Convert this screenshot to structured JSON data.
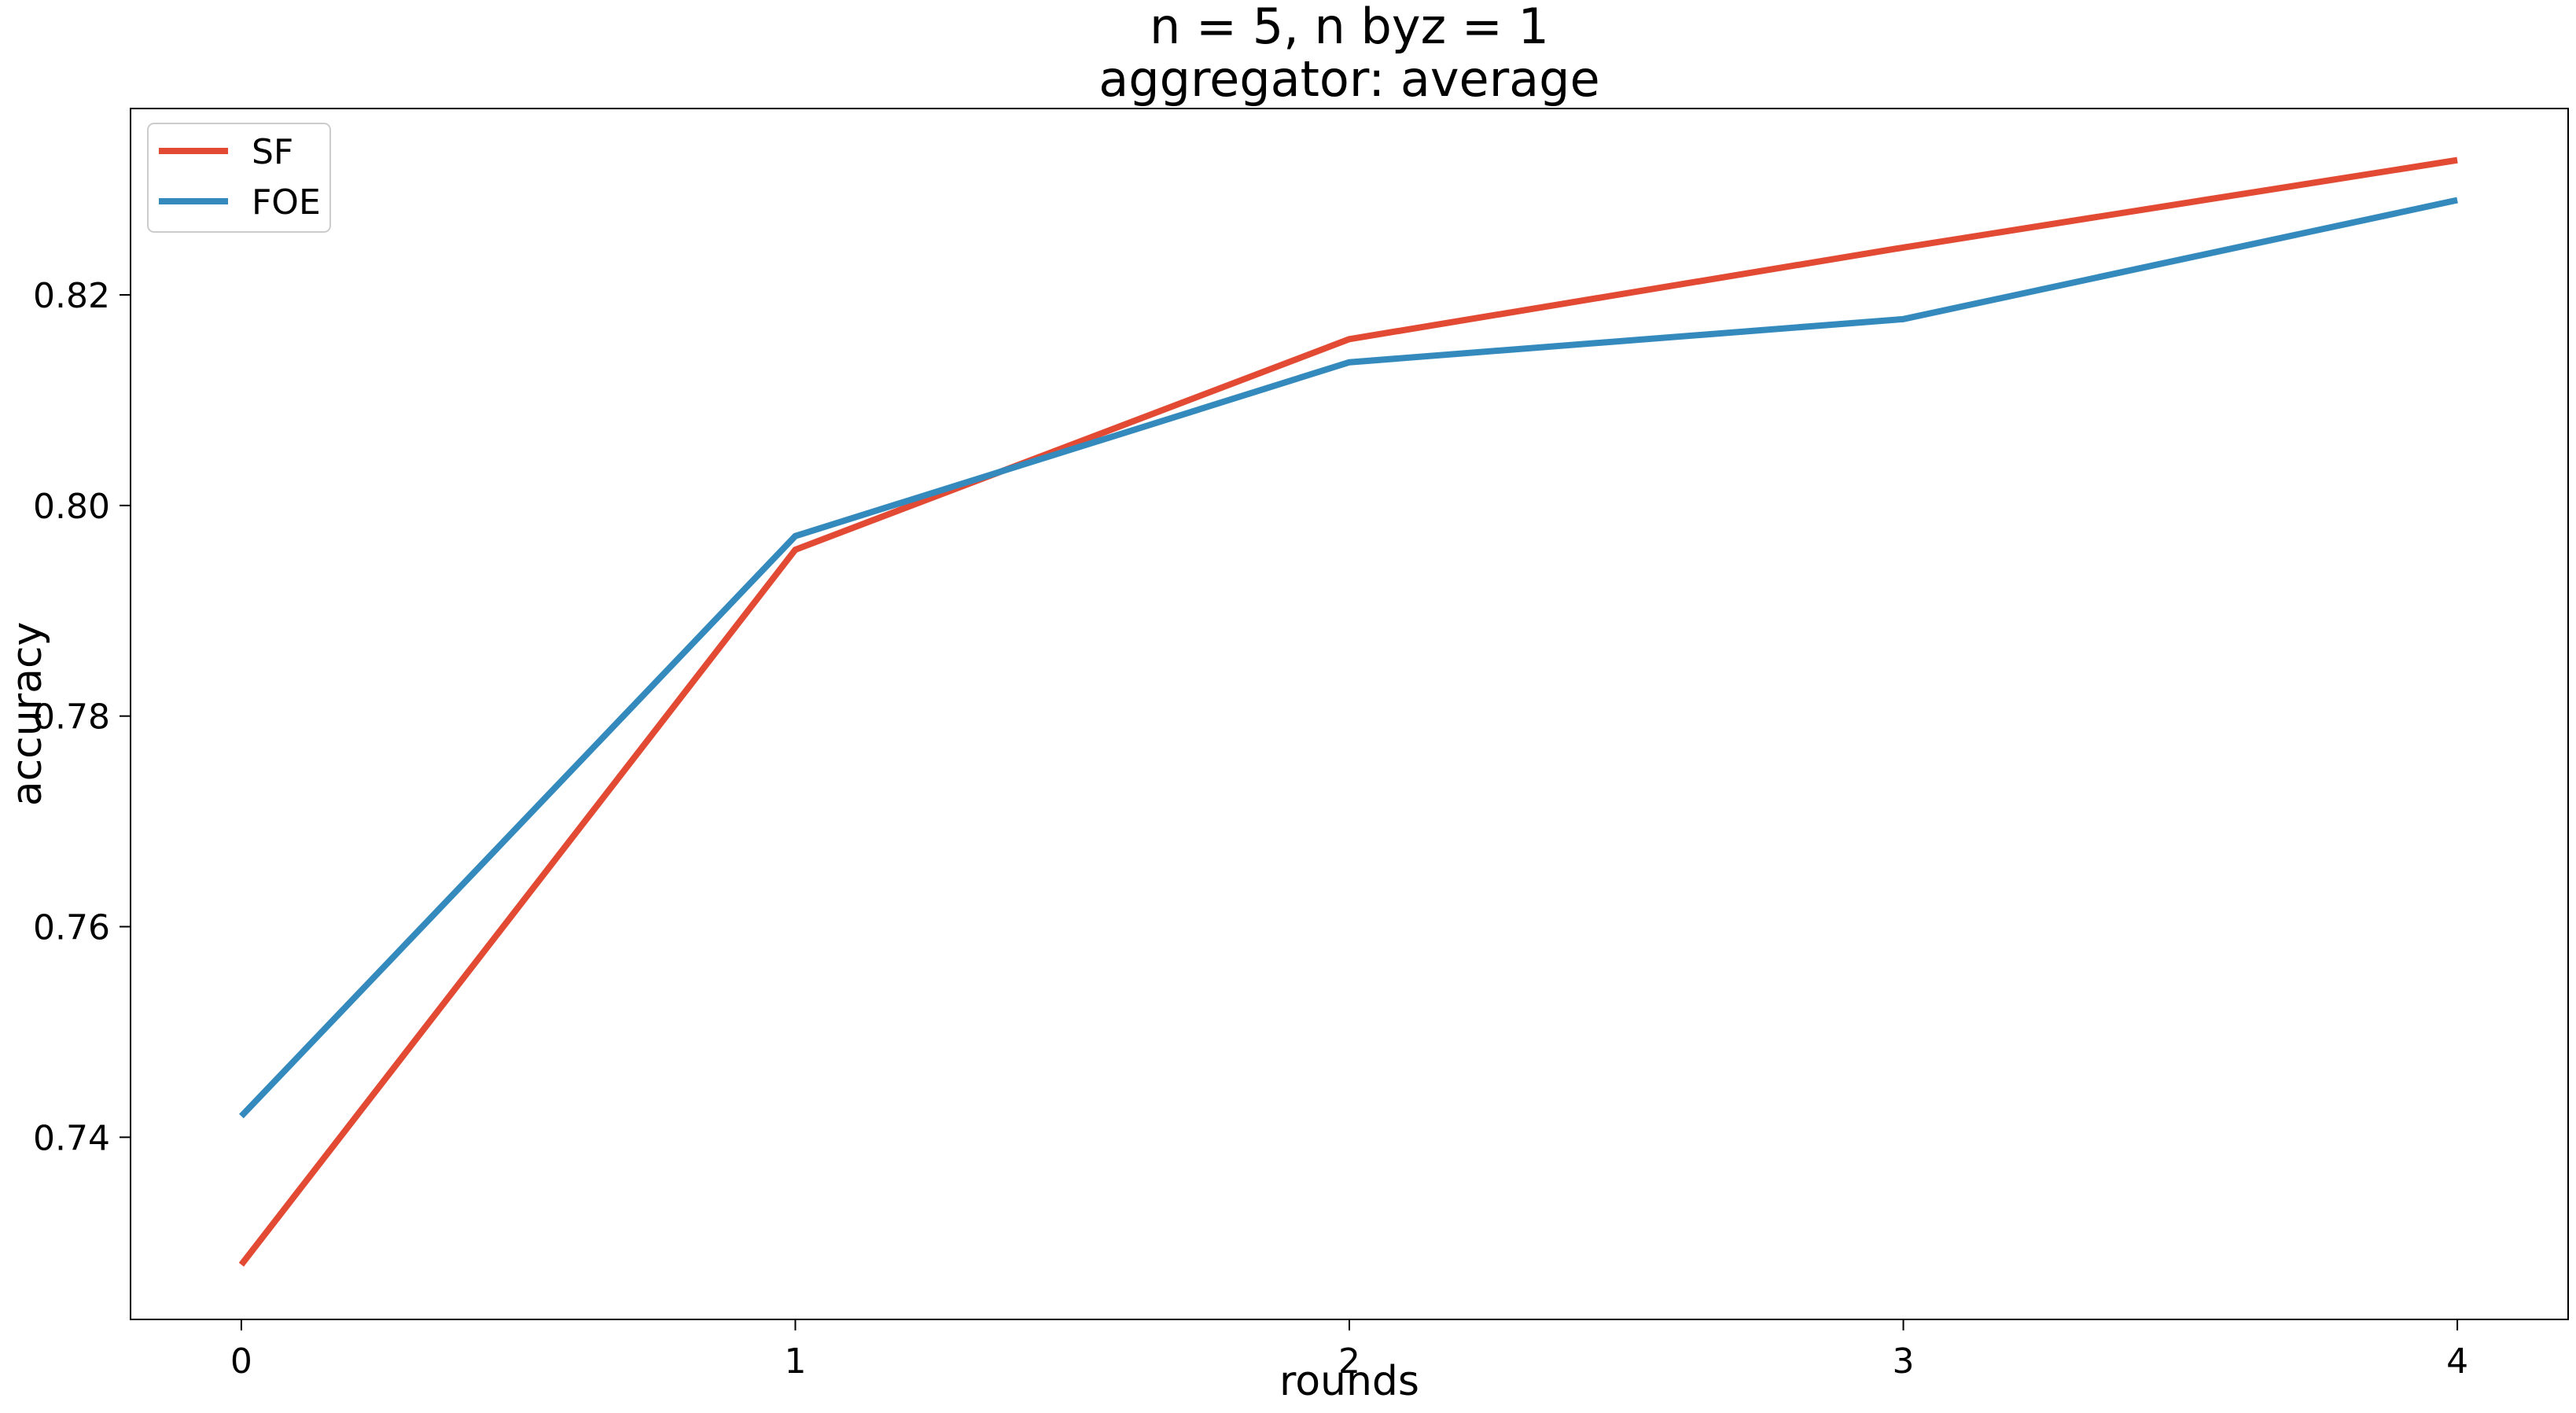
{
  "chart_data": {
    "type": "line",
    "title": "n = 5, n byz = 1",
    "subtitle": "aggregator: average",
    "xlabel": "rounds",
    "ylabel": "accuracy",
    "x": [
      0,
      1,
      2,
      3,
      4
    ],
    "x_ticks": [
      "0",
      "1",
      "2",
      "3",
      "4"
    ],
    "y_ticks": [
      "0.74",
      "0.76",
      "0.78",
      "0.80",
      "0.82"
    ],
    "xlim": [
      -0.2,
      4.2
    ],
    "ylim": [
      0.7227,
      0.8377
    ],
    "grid": false,
    "legend_position": "top-left",
    "series": [
      {
        "name": "SF",
        "color": "#E24A33",
        "values": [
          0.7279,
          0.7958,
          0.8158,
          0.8245,
          0.8328
        ]
      },
      {
        "name": "FOE",
        "color": "#348ABD",
        "values": [
          0.742,
          0.7971,
          0.8136,
          0.8177,
          0.829
        ]
      }
    ]
  }
}
